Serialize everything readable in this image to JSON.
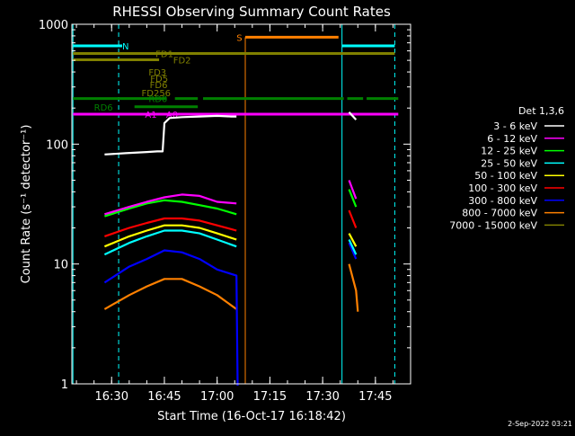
{
  "chart_data": {
    "type": "line",
    "title": "RHESSI Observing Summary Count Rates",
    "xlabel": "Start Time (16-Oct-17 16:18:42)",
    "ylabel": "Count Rate (s⁻¹ detector⁻¹)",
    "y_scale": "log",
    "ylim": [
      1,
      1000
    ],
    "xlim": [
      "16:18:42",
      "17:55:00"
    ],
    "x_ticks": [
      "16:30",
      "16:45",
      "17:00",
      "17:15",
      "17:30",
      "17:45"
    ],
    "y_ticks": [
      "1",
      "10",
      "100",
      "1000"
    ],
    "date_stamp": "2-Sep-2022 03:21",
    "legend_title": "Det 1,3,6",
    "legend_position": "right",
    "background": "#000000",
    "series": [
      {
        "name": "3 - 6 keV",
        "color": "#ffffff",
        "segments": [
          {
            "points": [
              [
                "16:28:00",
                82
              ],
              [
                "16:34:00",
                84
              ],
              [
                "16:40:00",
                86
              ],
              [
                "16:43:00",
                87
              ],
              [
                "16:44:30",
                87
              ],
              [
                "16:45:00",
                150
              ],
              [
                "16:46:30",
                165
              ],
              [
                "16:50:00",
                168
              ],
              [
                "16:55:00",
                170
              ],
              [
                "17:00:00",
                172
              ],
              [
                "17:04:00",
                170
              ],
              [
                "17:05:30",
                170
              ]
            ]
          },
          {
            "points": [
              [
                "17:37:30",
                185
              ],
              [
                "17:39:30",
                160
              ]
            ]
          }
        ]
      },
      {
        "name": "6 - 12 keV",
        "color": "#ff00ff",
        "segments": [
          {
            "points": [
              [
                "16:28:00",
                26
              ],
              [
                "16:35:00",
                30
              ],
              [
                "16:40:00",
                33
              ],
              [
                "16:45:00",
                36
              ],
              [
                "16:50:00",
                38
              ],
              [
                "16:55:00",
                37
              ],
              [
                "17:00:00",
                33
              ],
              [
                "17:05:30",
                32
              ]
            ]
          },
          {
            "points": [
              [
                "17:37:30",
                50
              ],
              [
                "17:39:30",
                35
              ]
            ]
          }
        ]
      },
      {
        "name": "12 - 25 keV",
        "color": "#00ff00",
        "segments": [
          {
            "points": [
              [
                "16:28:00",
                25
              ],
              [
                "16:35:00",
                29
              ],
              [
                "16:40:00",
                32
              ],
              [
                "16:45:00",
                34
              ],
              [
                "16:50:00",
                33
              ],
              [
                "16:55:00",
                31
              ],
              [
                "17:00:00",
                29
              ],
              [
                "17:05:30",
                26
              ]
            ]
          },
          {
            "points": [
              [
                "17:37:30",
                42
              ],
              [
                "17:39:30",
                30
              ]
            ]
          }
        ]
      },
      {
        "name": "25 - 50 keV",
        "color": "#00ffff",
        "segments": [
          {
            "points": [
              [
                "16:28:00",
                12
              ],
              [
                "16:35:00",
                15
              ],
              [
                "16:40:00",
                17
              ],
              [
                "16:45:00",
                19
              ],
              [
                "16:50:00",
                19
              ],
              [
                "16:55:00",
                18
              ],
              [
                "17:00:00",
                16
              ],
              [
                "17:05:30",
                14
              ]
            ]
          },
          {
            "points": [
              [
                "17:37:30",
                16
              ],
              [
                "17:39:30",
                12
              ]
            ]
          }
        ]
      },
      {
        "name": "50 - 100 keV",
        "color": "#ffff00",
        "segments": [
          {
            "points": [
              [
                "16:28:00",
                14
              ],
              [
                "16:35:00",
                17
              ],
              [
                "16:40:00",
                19
              ],
              [
                "16:45:00",
                21
              ],
              [
                "16:50:00",
                21
              ],
              [
                "16:55:00",
                20
              ],
              [
                "17:00:00",
                18
              ],
              [
                "17:05:30",
                16
              ]
            ]
          },
          {
            "points": [
              [
                "17:37:30",
                18
              ],
              [
                "17:39:30",
                14
              ]
            ]
          }
        ]
      },
      {
        "name": "100 - 300 keV",
        "color": "#ff0000",
        "segments": [
          {
            "points": [
              [
                "16:28:00",
                17
              ],
              [
                "16:35:00",
                20
              ],
              [
                "16:40:00",
                22
              ],
              [
                "16:45:00",
                24
              ],
              [
                "16:50:00",
                24
              ],
              [
                "16:55:00",
                23
              ],
              [
                "17:00:00",
                21
              ],
              [
                "17:05:30",
                19
              ]
            ]
          },
          {
            "points": [
              [
                "17:37:30",
                28
              ],
              [
                "17:39:30",
                20
              ]
            ]
          }
        ]
      },
      {
        "name": "300 - 800 keV",
        "color": "#0000ff",
        "segments": [
          {
            "points": [
              [
                "16:28:00",
                7
              ],
              [
                "16:35:00",
                9.5
              ],
              [
                "16:40:00",
                11
              ],
              [
                "16:45:00",
                13
              ],
              [
                "16:50:00",
                12.5
              ],
              [
                "16:55:00",
                11
              ],
              [
                "17:00:00",
                9
              ],
              [
                "17:05:30",
                8
              ],
              [
                "17:05:50",
                0.5
              ]
            ]
          },
          {
            "points": [
              [
                "17:37:30",
                15
              ],
              [
                "17:39:30",
                11
              ]
            ]
          }
        ]
      },
      {
        "name": "800 - 7000 keV",
        "color": "#ff8000",
        "segments": [
          {
            "points": [
              [
                "16:28:00",
                4.2
              ],
              [
                "16:35:00",
                5.5
              ],
              [
                "16:40:00",
                6.5
              ],
              [
                "16:45:00",
                7.5
              ],
              [
                "16:50:00",
                7.5
              ],
              [
                "16:55:00",
                6.5
              ],
              [
                "17:00:00",
                5.5
              ],
              [
                "17:05:30",
                4.2
              ]
            ]
          },
          {
            "points": [
              [
                "17:37:30",
                10
              ],
              [
                "17:39:30",
                6
              ],
              [
                "17:40:00",
                4
              ]
            ]
          }
        ]
      },
      {
        "name": "7000 - 15000 keV",
        "color": "#808000",
        "segments": []
      }
    ],
    "attenuator_lines": {
      "color": "#00ffff",
      "solid_at": [
        "16:19:00",
        "17:35:30"
      ],
      "dashed_at": [
        "16:32:00",
        "17:50:30"
      ]
    },
    "state_bars": [
      {
        "label": "N",
        "color": "#00ffff",
        "y": 660,
        "segments": [
          [
            "16:19:00",
            "16:33:00"
          ],
          [
            "17:35:30",
            "17:50:30"
          ]
        ],
        "label_at": "16:33:00"
      },
      {
        "label": "FD1",
        "color": "#808000",
        "y": 570,
        "segments": [
          [
            "16:19:00",
            "17:50:30"
          ]
        ],
        "label_at": "16:42:30"
      },
      {
        "label": "FD2",
        "color": "#808000",
        "y": 505,
        "segments": [
          [
            "16:19:00",
            "16:43:30"
          ]
        ],
        "label_at": "16:47:30"
      },
      {
        "label": "FD3",
        "color": "#808000",
        "y": 400,
        "segments": [],
        "label_at": "16:40:30"
      },
      {
        "label": "FD5",
        "color": "#808000",
        "y": 355,
        "segments": [],
        "label_at": "16:41:00"
      },
      {
        "label": "FD6",
        "color": "#808000",
        "y": 315,
        "segments": [],
        "label_at": "16:40:50"
      },
      {
        "label": "FD256",
        "color": "#808000",
        "y": 270,
        "segments": [],
        "label_at": "16:38:30"
      },
      {
        "label": "RD0",
        "color": "#008000",
        "y": 240,
        "segments": [
          [
            "16:19:00",
            "16:45:30"
          ],
          [
            "16:48:00",
            "16:54:30"
          ],
          [
            "16:56:00",
            "17:36:00"
          ],
          [
            "17:37:00",
            "17:41:30"
          ],
          [
            "17:42:30",
            "17:51:30"
          ]
        ],
        "label_at": "16:40:30"
      },
      {
        "label": "RD6",
        "color": "#008000",
        "y": 205,
        "segments": [
          [
            "16:36:30",
            "16:54:30"
          ]
        ],
        "label_at": "16:25:00"
      },
      {
        "label": "A1",
        "color": "#ff00ff",
        "y": 178,
        "segments": [
          [
            "16:19:00",
            "17:51:30"
          ]
        ],
        "label_at": "16:39:30"
      },
      {
        "label": "A0",
        "color": "#ff00ff",
        "y": 178,
        "segments": [],
        "label_at": "16:45:30"
      },
      {
        "label": "S",
        "color": "#ff8000",
        "y": 780,
        "segments": [
          [
            "17:08:00",
            "17:34:30"
          ]
        ],
        "label_at": "17:05:30"
      }
    ],
    "s_marker_time": "17:08:00"
  }
}
